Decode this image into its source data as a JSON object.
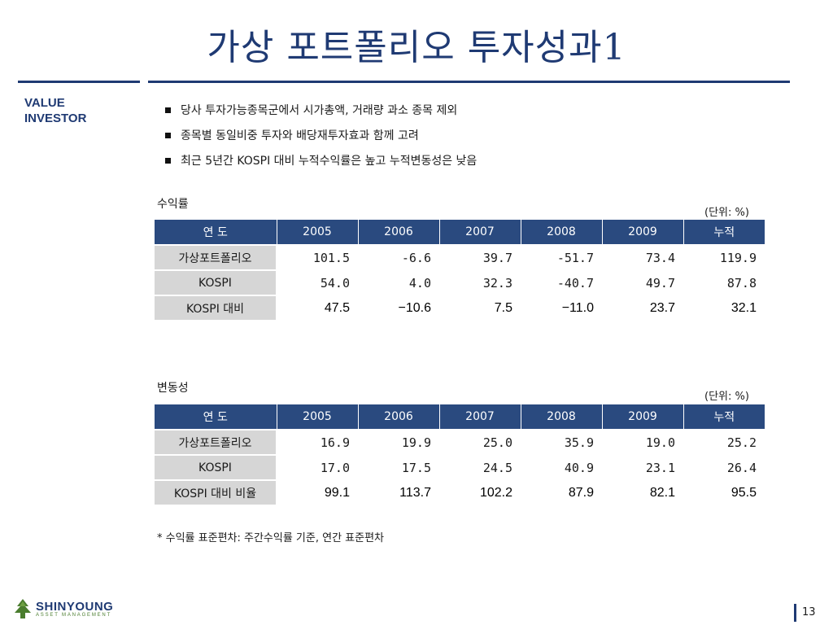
{
  "title": "가상 포트폴리오 투자성과1",
  "brand": {
    "line1": "VALUE",
    "line2": "INVESTOR"
  },
  "bullets": [
    "당사 투자가능종목군에서 시가총액, 거래량 과소 종목 제외",
    "종목별 동일비중 투자와 배당재투자효과 함께 고려",
    "최근 5년간 KOSPI 대비 누적수익률은 높고 누적변동성은 낮음"
  ],
  "returns": {
    "label": "수익률",
    "unit": "(단위: %)",
    "headers": [
      "연 도",
      "2005",
      "2006",
      "2007",
      "2008",
      "2009",
      "누적"
    ],
    "rows": [
      {
        "name": "가상포트폴리오",
        "values": [
          "101.5",
          "-6.6",
          "39.7",
          "-51.7",
          "73.4",
          "119.9"
        ]
      },
      {
        "name": "KOSPI",
        "values": [
          "54.0",
          "4.0",
          "32.3",
          "-40.7",
          "49.7",
          "87.8"
        ]
      },
      {
        "name": "KOSPI 대비",
        "values": [
          "47.5",
          "−10.6",
          "7.5",
          "−11.0",
          "23.7",
          "32.1"
        ]
      }
    ]
  },
  "volatility": {
    "label": "변동성",
    "unit": "(단위: %)",
    "headers": [
      "연 도",
      "2005",
      "2006",
      "2007",
      "2008",
      "2009",
      "누적"
    ],
    "rows": [
      {
        "name": "가상포트폴리오",
        "values": [
          "16.9",
          "19.9",
          "25.0",
          "35.9",
          "19.0",
          "25.2"
        ]
      },
      {
        "name": "KOSPI",
        "values": [
          "17.0",
          "17.5",
          "24.5",
          "40.9",
          "23.1",
          "26.4"
        ]
      },
      {
        "name": "KOSPI 대비 비율",
        "values": [
          "99.1",
          "113.7",
          "102.2",
          "87.9",
          "82.1",
          "95.5"
        ]
      }
    ]
  },
  "footnote": "* 수익률 표준편차: 주간수익률 기준, 연간 표준편차",
  "logo": {
    "name": "SHINYOUNG",
    "sub": "ASSET MANAGEMENT",
    "icon": "pine-tree-icon"
  },
  "page_number": "13",
  "colors": {
    "accent": "#1f3a73",
    "header_fill": "#2a4a7f",
    "row_label_fill": "#d6d6d6",
    "logo_green": "#4a7d2e"
  }
}
